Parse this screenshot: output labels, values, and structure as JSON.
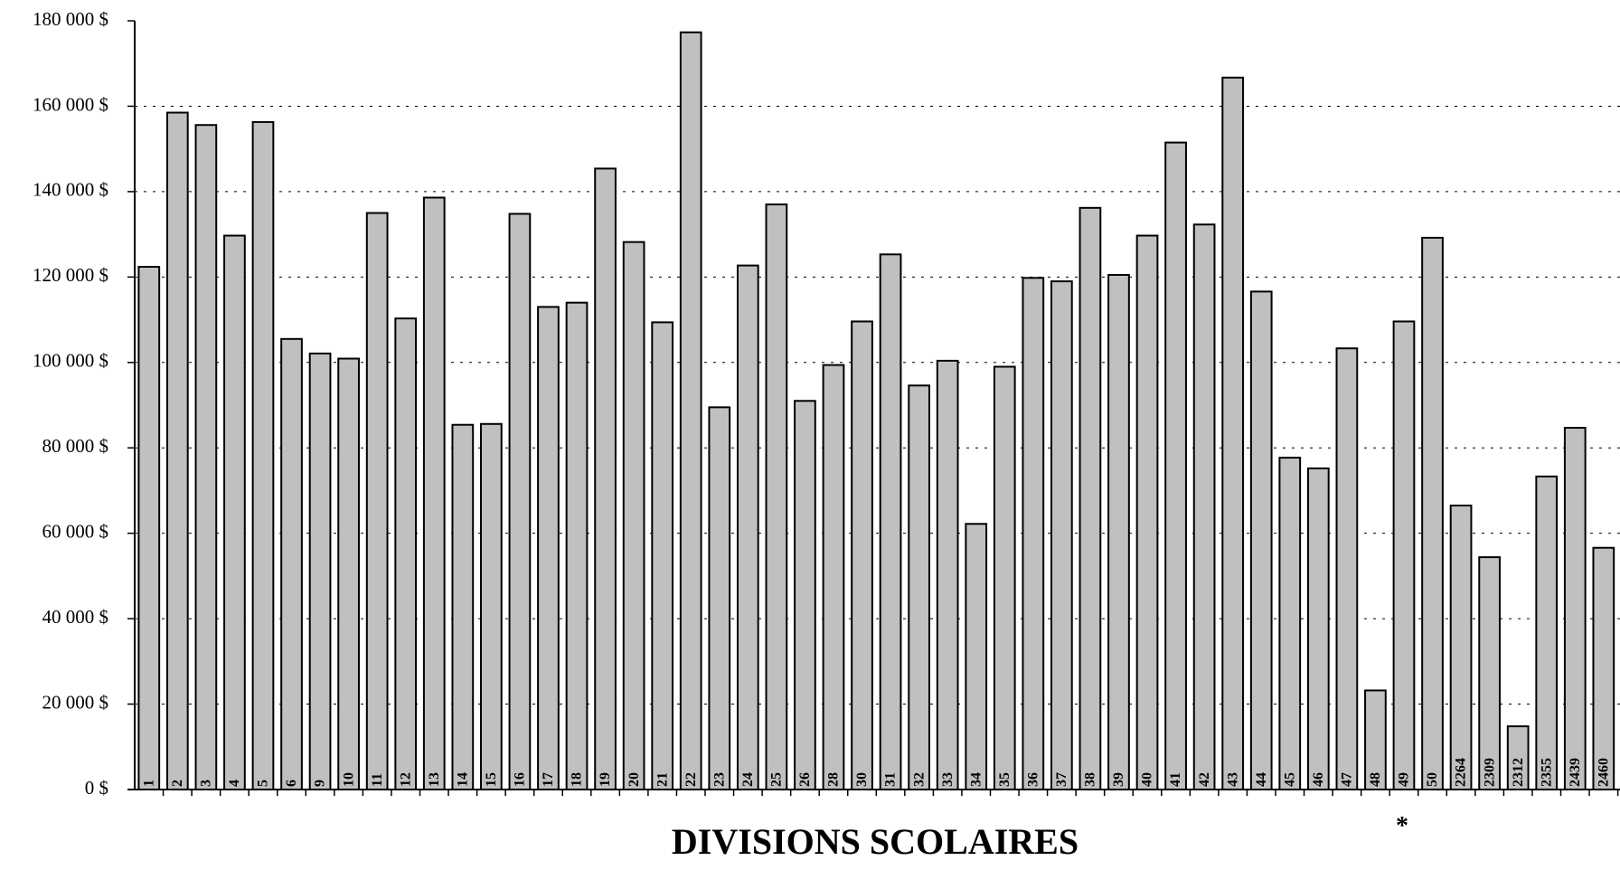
{
  "chart_data": {
    "type": "bar",
    "xlabel": "DIVISIONS SCOLAIRES",
    "annotation": "*",
    "color": "#c0c0c0",
    "grid": true,
    "categories": [
      "1",
      "2",
      "3",
      "4",
      "5",
      "6",
      "9",
      "10",
      "11",
      "12",
      "13",
      "14",
      "15",
      "16",
      "17",
      "18",
      "19",
      "20",
      "21",
      "22",
      "23",
      "24",
      "25",
      "26",
      "28",
      "30",
      "31",
      "32",
      "33",
      "34",
      "35",
      "36",
      "37",
      "38",
      "39",
      "40",
      "41",
      "42",
      "43",
      "44",
      "45",
      "46",
      "47",
      "48",
      "49",
      "50",
      "2264",
      "2309",
      "2312",
      "2355",
      "2439",
      "2460"
    ],
    "values": [
      122400,
      158500,
      155600,
      129700,
      156300,
      105500,
      102100,
      100900,
      135000,
      110300,
      138600,
      85400,
      85600,
      134800,
      113000,
      114000,
      145400,
      128200,
      109400,
      177300,
      89500,
      122700,
      137000,
      91000,
      99400,
      109600,
      125300,
      94600,
      100400,
      62200,
      99000,
      119800,
      119000,
      136200,
      120500,
      129700,
      151500,
      132300,
      166700,
      116600,
      77700,
      75200,
      103300,
      23200,
      109600,
      129200,
      66500,
      54400,
      14800,
      73300,
      84700,
      56600
    ],
    "ylim": [
      0,
      180000
    ],
    "yticks": [
      {
        "value": 0,
        "label": "0 $"
      },
      {
        "value": 20000,
        "label": "20 000 $"
      },
      {
        "value": 40000,
        "label": "40 000 $"
      },
      {
        "value": 60000,
        "label": "60 000 $"
      },
      {
        "value": 80000,
        "label": "80 000 $"
      },
      {
        "value": 100000,
        "label": "100 000 $"
      },
      {
        "value": 120000,
        "label": "120 000 $"
      },
      {
        "value": 140000,
        "label": "140 000 $"
      },
      {
        "value": 160000,
        "label": "160 000 $"
      },
      {
        "value": 180000,
        "label": "180 000 $"
      }
    ]
  }
}
